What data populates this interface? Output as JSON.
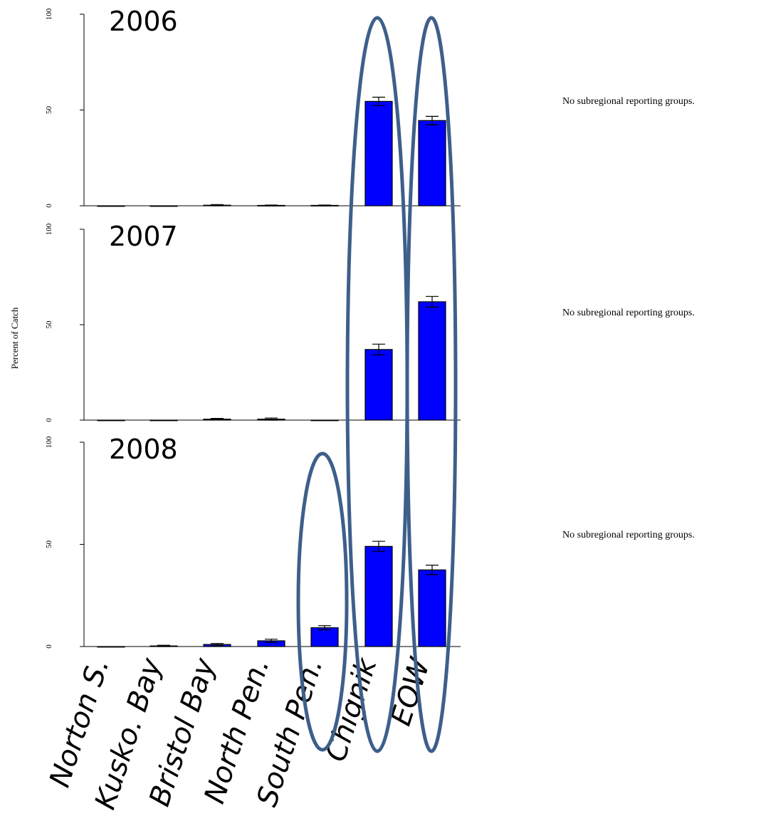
{
  "chart_data": {
    "type": "bar",
    "ylabel": "Percent of Catch",
    "ylim": [
      0,
      100
    ],
    "yticks": [
      "0",
      "50",
      "100"
    ],
    "categories": [
      "Norton S.",
      "Kusko. Bay",
      "Bristol Bay",
      "North Pen.",
      "South Pen.",
      "Chignik",
      "EOW"
    ],
    "bar_color": "#0000ff",
    "highlight_color": "#3e5f8a",
    "panels": [
      {
        "year": "2006",
        "values": [
          0,
          0,
          0.3,
          0.2,
          0.2,
          54.5,
          44.5
        ],
        "errors": [
          0,
          0,
          0.3,
          0.2,
          0.2,
          2.2,
          2.2
        ],
        "note": "No subregional reporting groups."
      },
      {
        "year": "2007",
        "values": [
          0,
          0,
          0.5,
          0.5,
          0,
          37,
          62
        ],
        "errors": [
          0,
          0,
          0.4,
          0.6,
          0,
          2.8,
          2.8
        ],
        "note": "No subregional reporting groups."
      },
      {
        "year": "2008",
        "values": [
          0,
          0.3,
          1,
          2.8,
          9.2,
          49,
          37.5
        ],
        "errors": [
          0,
          0.3,
          0.5,
          0.8,
          1,
          2.5,
          2.3
        ],
        "note": "No subregional reporting groups."
      }
    ]
  }
}
